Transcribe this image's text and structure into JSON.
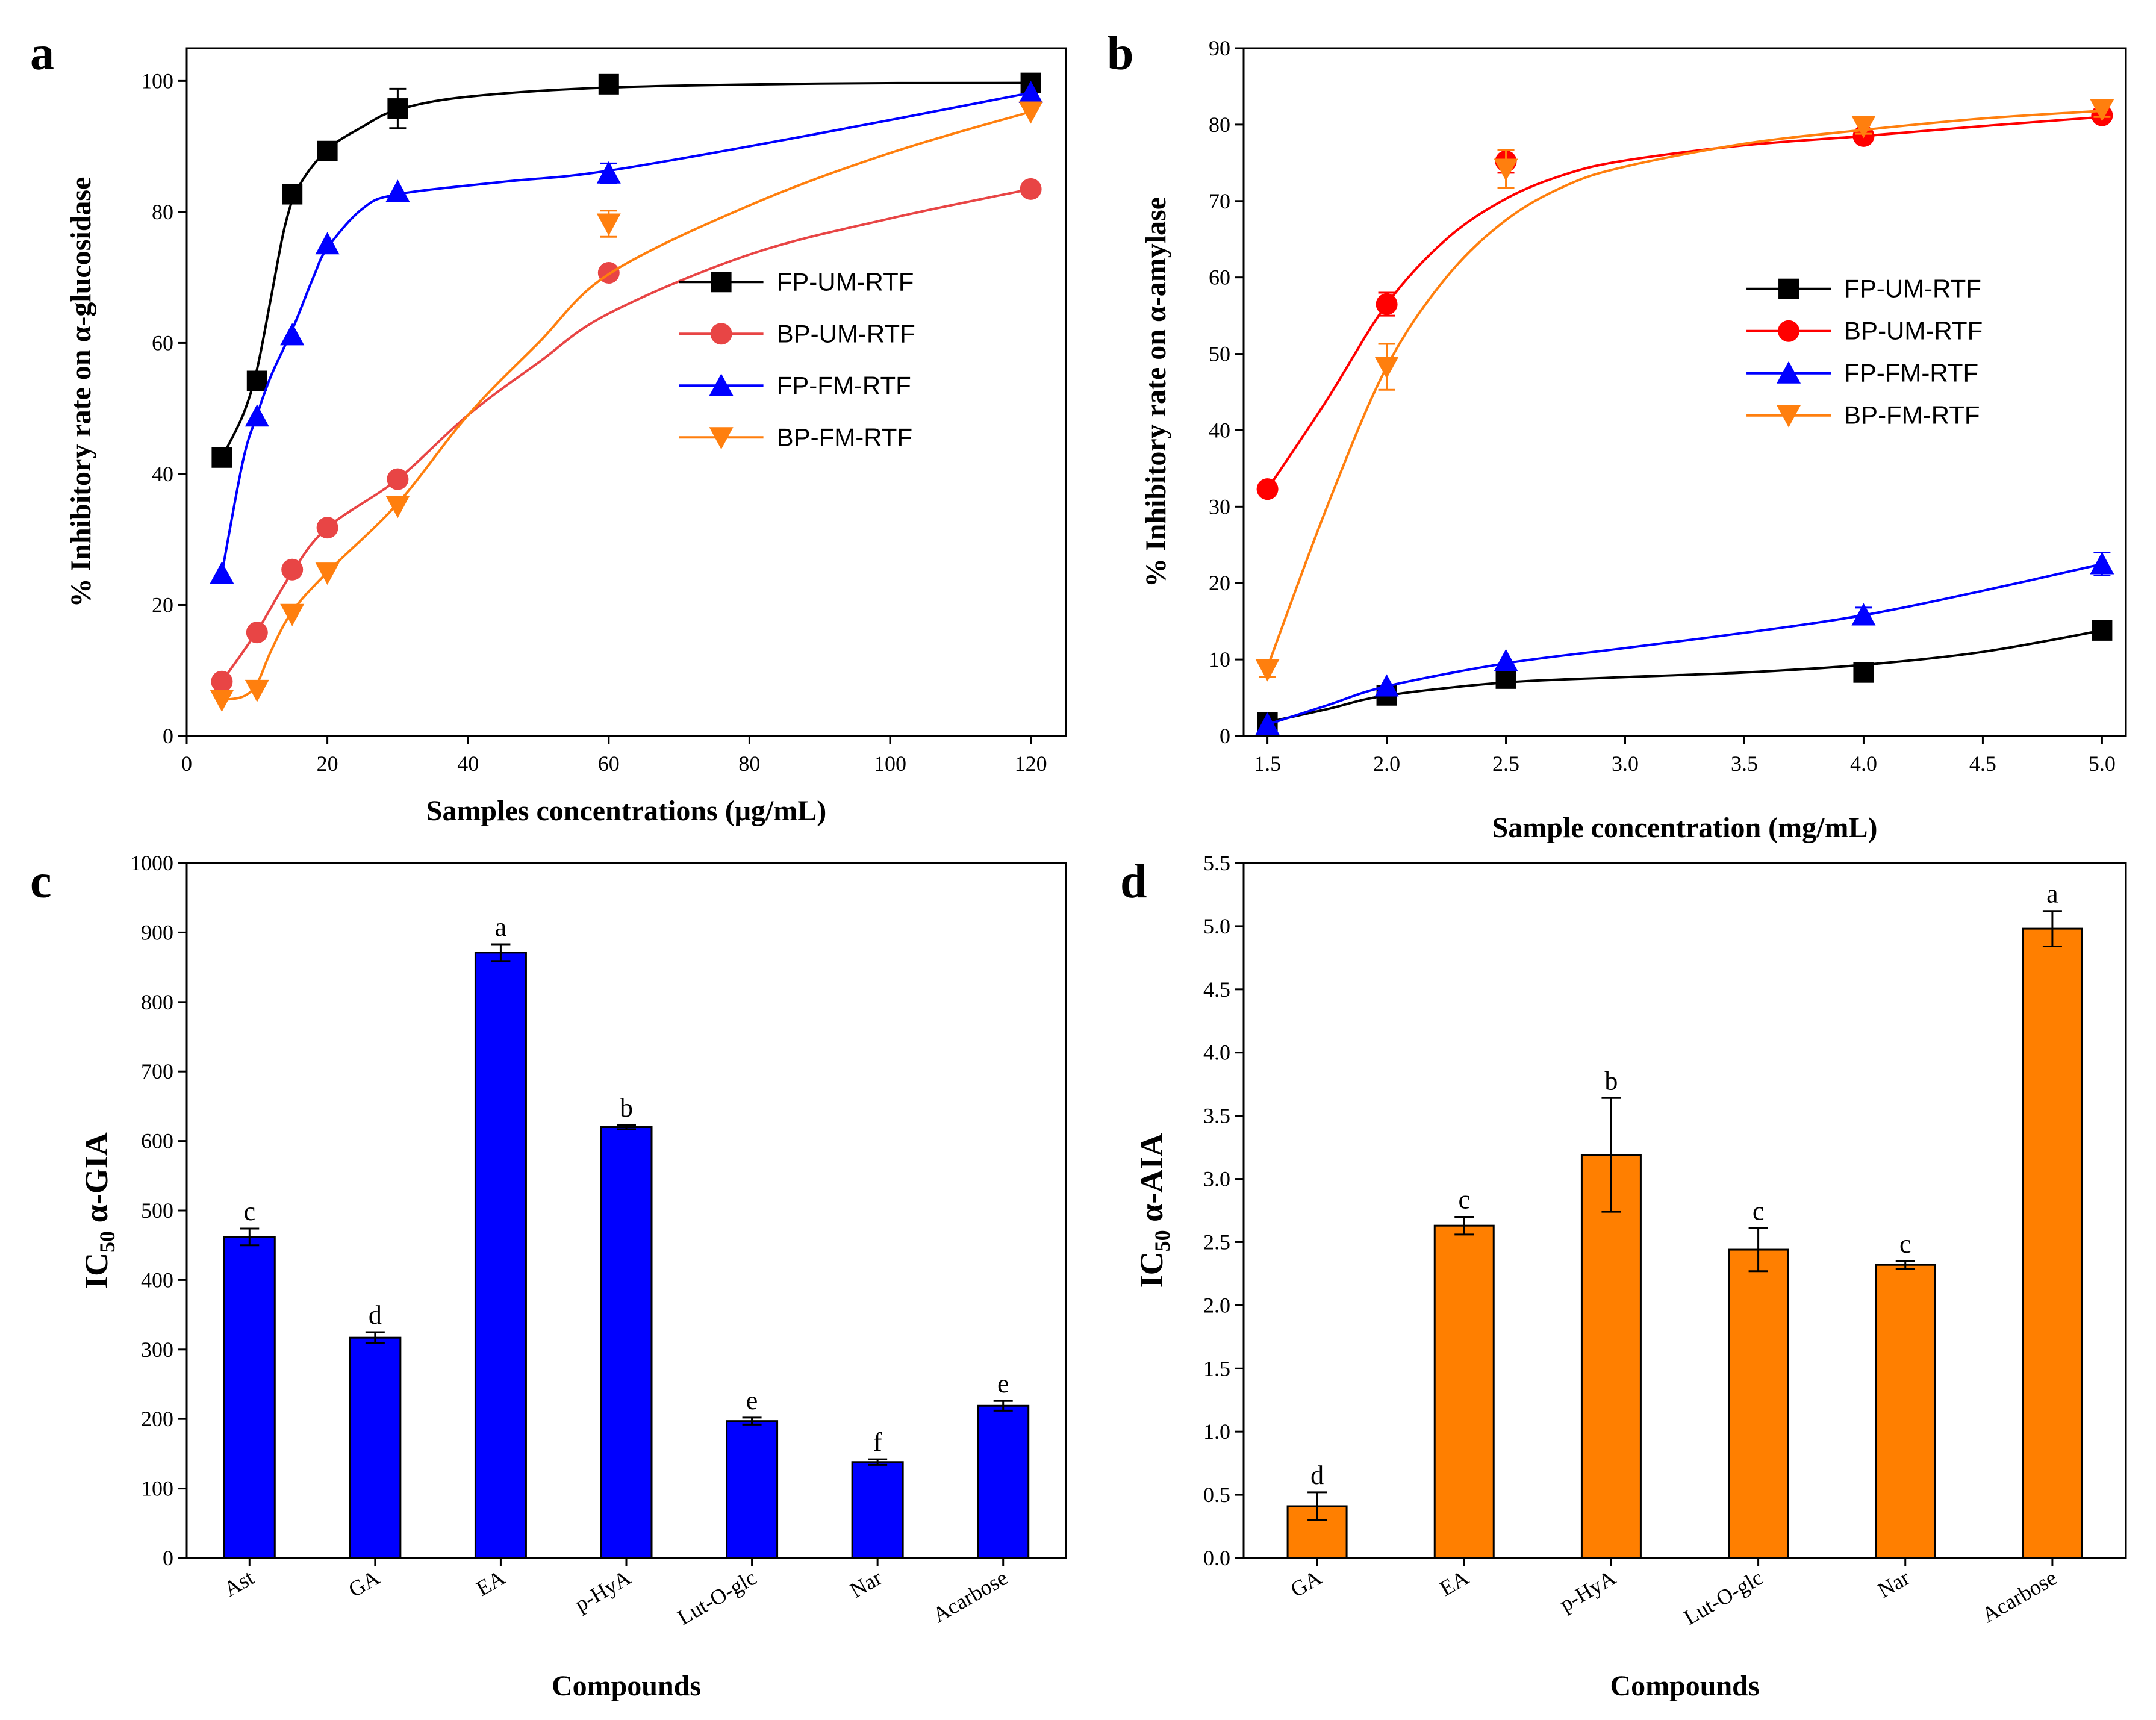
{
  "chart_data": [
    {
      "panel": "A",
      "type": "line",
      "xlabel": "Samples concentrations (μg/mL)",
      "ylabel": "% Inhibitory rate on α-glucosidase",
      "xlim": [
        0,
        125
      ],
      "ylim": [
        0,
        105
      ],
      "xticks": [
        0,
        20,
        40,
        60,
        80,
        100,
        120
      ],
      "yticks": [
        0,
        20,
        40,
        60,
        80,
        100
      ],
      "legend_position": "right",
      "series": [
        {
          "name": "FP-UM-RTF",
          "color": "#000000",
          "marker": "square",
          "x": [
            5,
            10,
            15,
            20,
            30,
            60,
            120
          ],
          "y": [
            42.5,
            54.2,
            82.7,
            89.3,
            95.8,
            99.5,
            99.7
          ],
          "err": [
            0,
            0,
            0,
            0,
            3,
            0,
            0
          ],
          "curve": [
            [
              5,
              42.5
            ],
            [
              8,
              49
            ],
            [
              10,
              56
            ],
            [
              12,
              67
            ],
            [
              14,
              78
            ],
            [
              16,
              84
            ],
            [
              20,
              89.5
            ],
            [
              25,
              93
            ],
            [
              30,
              95.6
            ],
            [
              40,
              97.6
            ],
            [
              60,
              99
            ],
            [
              90,
              99.6
            ],
            [
              120,
              99.7
            ]
          ]
        },
        {
          "name": "BP-UM-RTF",
          "color": "#e84545",
          "marker": "circle",
          "x": [
            5,
            10,
            15,
            20,
            30,
            60,
            120
          ],
          "y": [
            8.3,
            15.8,
            25.4,
            31.8,
            39.2,
            70.7,
            83.5
          ],
          "err": [
            0,
            0,
            0,
            0,
            0,
            0,
            0
          ],
          "curve": [
            [
              5,
              8.3
            ],
            [
              10,
              16
            ],
            [
              15,
              25
            ],
            [
              20,
              31.8
            ],
            [
              30,
              39.2
            ],
            [
              40,
              49
            ],
            [
              50,
              57
            ],
            [
              60,
              64.5
            ],
            [
              80,
              73.5
            ],
            [
              100,
              79
            ],
            [
              120,
              83.5
            ]
          ]
        },
        {
          "name": "FP-FM-RTF",
          "color": "#0000ff",
          "marker": "triangle-up",
          "x": [
            5,
            10,
            15,
            20,
            30,
            60,
            120
          ],
          "y": [
            24.8,
            48.8,
            61.2,
            75.1,
            83.1,
            85.9,
            98.2
          ],
          "err": [
            0,
            0,
            0,
            0,
            0,
            1.5,
            0
          ],
          "curve": [
            [
              5,
              24.8
            ],
            [
              8,
              42
            ],
            [
              10,
              49
            ],
            [
              12,
              55
            ],
            [
              15,
              62
            ],
            [
              18,
              70
            ],
            [
              20,
              74.5
            ],
            [
              25,
              80.5
            ],
            [
              30,
              82.7
            ],
            [
              45,
              84.6
            ],
            [
              60,
              86.3
            ],
            [
              90,
              92
            ],
            [
              120,
              98.2
            ]
          ]
        },
        {
          "name": "BP-FM-RTF",
          "color": "#ff7f0e",
          "marker": "triangle-down",
          "x": [
            5,
            10,
            15,
            20,
            30,
            60,
            120
          ],
          "y": [
            5.5,
            7.0,
            18.6,
            24.9,
            35.1,
            78.2,
            95.3
          ],
          "err": [
            0,
            0,
            0,
            0,
            0,
            2,
            0
          ],
          "curve": [
            [
              5,
              5.5
            ],
            [
              8,
              6
            ],
            [
              10,
              8
            ],
            [
              12,
              13
            ],
            [
              15,
              19
            ],
            [
              20,
              25
            ],
            [
              30,
              35.5
            ],
            [
              40,
              49
            ],
            [
              50,
              60
            ],
            [
              60,
              70.5
            ],
            [
              80,
              81
            ],
            [
              100,
              89
            ],
            [
              120,
              95.3
            ]
          ]
        }
      ]
    },
    {
      "panel": "B",
      "type": "line",
      "xlabel": "Sample concentration (mg/mL)",
      "ylabel": "% Inhibitory rate on α-amylase",
      "xlim": [
        1.4,
        5.1
      ],
      "ylim": [
        0,
        90
      ],
      "xticks": [
        1.5,
        2.0,
        2.5,
        3.0,
        3.5,
        4.0,
        4.5,
        5.0
      ],
      "xtick_labels": [
        "1.5",
        "2.0",
        "2.5",
        "3.0",
        "3.5",
        "4.0",
        "4.5",
        "5.0"
      ],
      "yticks": [
        0,
        10,
        20,
        30,
        40,
        50,
        60,
        70,
        80,
        90
      ],
      "legend_position": "right",
      "series": [
        {
          "name": "FP-UM-RTF",
          "color": "#000000",
          "marker": "square",
          "x": [
            1.5,
            2.0,
            2.5,
            4.0,
            5.0
          ],
          "y": [
            1.8,
            5.3,
            7.5,
            8.3,
            13.8
          ],
          "err": [
            0,
            0,
            0,
            0,
            0
          ],
          "curve": [
            [
              1.5,
              1.8
            ],
            [
              1.75,
              3.5
            ],
            [
              2.0,
              5.3
            ],
            [
              2.5,
              7.0
            ],
            [
              3.0,
              7.7
            ],
            [
              3.5,
              8.3
            ],
            [
              4.0,
              9.3
            ],
            [
              4.5,
              11.0
            ],
            [
              5.0,
              13.8
            ]
          ]
        },
        {
          "name": "BP-UM-RTF",
          "color": "#ff0000",
          "marker": "circle",
          "x": [
            1.5,
            2.0,
            2.5,
            4.0,
            5.0
          ],
          "y": [
            32.3,
            56.5,
            75.2,
            78.5,
            81.2
          ],
          "err": [
            0,
            1.5,
            1.5,
            0,
            0
          ],
          "curve": [
            [
              1.5,
              32.3
            ],
            [
              1.75,
              44
            ],
            [
              2.0,
              56.5
            ],
            [
              2.25,
              65
            ],
            [
              2.5,
              70.3
            ],
            [
              2.75,
              73.5
            ],
            [
              3.0,
              75.3
            ],
            [
              3.5,
              77.3
            ],
            [
              4.0,
              78.5
            ],
            [
              4.5,
              79.8
            ],
            [
              5.0,
              81.0
            ]
          ]
        },
        {
          "name": "FP-FM-RTF",
          "color": "#0000ff",
          "marker": "triangle-up",
          "x": [
            1.5,
            2.0,
            2.5,
            4.0,
            5.0
          ],
          "y": [
            1.5,
            6.5,
            9.8,
            15.8,
            22.5
          ],
          "err": [
            0,
            0,
            0,
            1,
            1.5
          ],
          "curve": [
            [
              1.5,
              1.5
            ],
            [
              1.75,
              4.0
            ],
            [
              2.0,
              6.5
            ],
            [
              2.5,
              9.5
            ],
            [
              3.0,
              11.5
            ],
            [
              3.5,
              13.5
            ],
            [
              4.0,
              15.8
            ],
            [
              4.5,
              19.0
            ],
            [
              5.0,
              22.5
            ]
          ]
        },
        {
          "name": "BP-FM-RTF",
          "color": "#ff7f0e",
          "marker": "triangle-down",
          "x": [
            1.5,
            2.0,
            2.5,
            4.0,
            5.0
          ],
          "y": [
            8.7,
            48.3,
            74.2,
            79.8,
            82.0
          ],
          "err": [
            1,
            3,
            2.5,
            1,
            1
          ],
          "curve": [
            [
              1.5,
              9.0
            ],
            [
              1.75,
              30
            ],
            [
              2.0,
              48.3
            ],
            [
              2.25,
              60
            ],
            [
              2.5,
              67.5
            ],
            [
              2.75,
              72
            ],
            [
              3.0,
              74.5
            ],
            [
              3.5,
              77.5
            ],
            [
              4.0,
              79.3
            ],
            [
              4.5,
              80.8
            ],
            [
              5.0,
              81.8
            ]
          ]
        }
      ]
    },
    {
      "panel": "C",
      "type": "bar",
      "color": "#0000ff",
      "xlabel": "Compounds",
      "ylabel_main": "IC",
      "ylabel_sub": "50",
      "ylabel_rest": "α-GIA",
      "ylim": [
        0,
        1000
      ],
      "yticks": [
        0,
        100,
        200,
        300,
        400,
        500,
        600,
        700,
        800,
        900,
        1000
      ],
      "categories": [
        "Ast",
        "GA",
        "EA",
        "p-HyA",
        "Lut-O-glc",
        "Nar",
        "Acarbose"
      ],
      "values": [
        462,
        317,
        871,
        620,
        197,
        138,
        219
      ],
      "errors": [
        12,
        8,
        12,
        3,
        5,
        4,
        7
      ],
      "letters": [
        "c",
        "d",
        "a",
        "b",
        "e",
        "f",
        "e"
      ]
    },
    {
      "panel": "D",
      "type": "bar",
      "color": "#ff7f00",
      "xlabel": "Compounds",
      "ylabel_main": "IC",
      "ylabel_sub": "50",
      "ylabel_rest": "α-AIA",
      "ylim": [
        0,
        5.5
      ],
      "yticks": [
        0,
        0.5,
        1.0,
        1.5,
        2.0,
        2.5,
        3.0,
        3.5,
        4.0,
        4.5,
        5.0,
        5.5
      ],
      "ytick_labels": [
        "0.0",
        "0.5",
        "1.0",
        "1.5",
        "2.0",
        "2.5",
        "3.0",
        "3.5",
        "4.0",
        "4.5",
        "5.0",
        "5.5"
      ],
      "categories": [
        "GA",
        "EA",
        "p-HyA",
        "Lut-O-glc",
        "Nar",
        "Acarbose"
      ],
      "values": [
        0.41,
        2.63,
        3.19,
        2.44,
        2.32,
        4.98
      ],
      "errors": [
        0.11,
        0.07,
        0.45,
        0.17,
        0.03,
        0.14
      ],
      "letters": [
        "d",
        "c",
        "b",
        "c",
        "c",
        "a"
      ]
    }
  ]
}
